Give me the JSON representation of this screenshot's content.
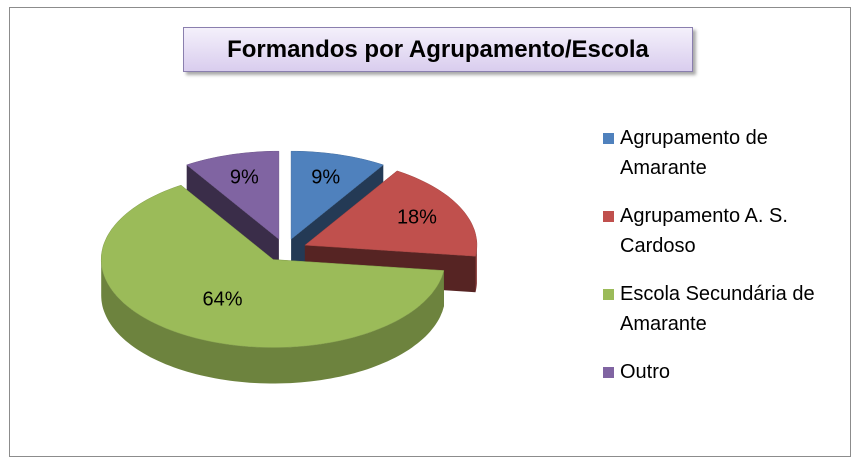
{
  "chart_data": {
    "type": "pie3d",
    "title": "Formandos por Agrupamento/Escola",
    "categories": [
      "Agrupamento de Amarante",
      "Agrupamento A. S. Cardoso",
      "Escola Secundária de Amarante",
      "Outro"
    ],
    "values": [
      9,
      18,
      64,
      9
    ],
    "value_labels": [
      "9%",
      "18%",
      "64%",
      "9%"
    ],
    "colors": [
      "#4f81bd",
      "#c0504d",
      "#9bbb59",
      "#8064a2"
    ],
    "legend": "right"
  }
}
